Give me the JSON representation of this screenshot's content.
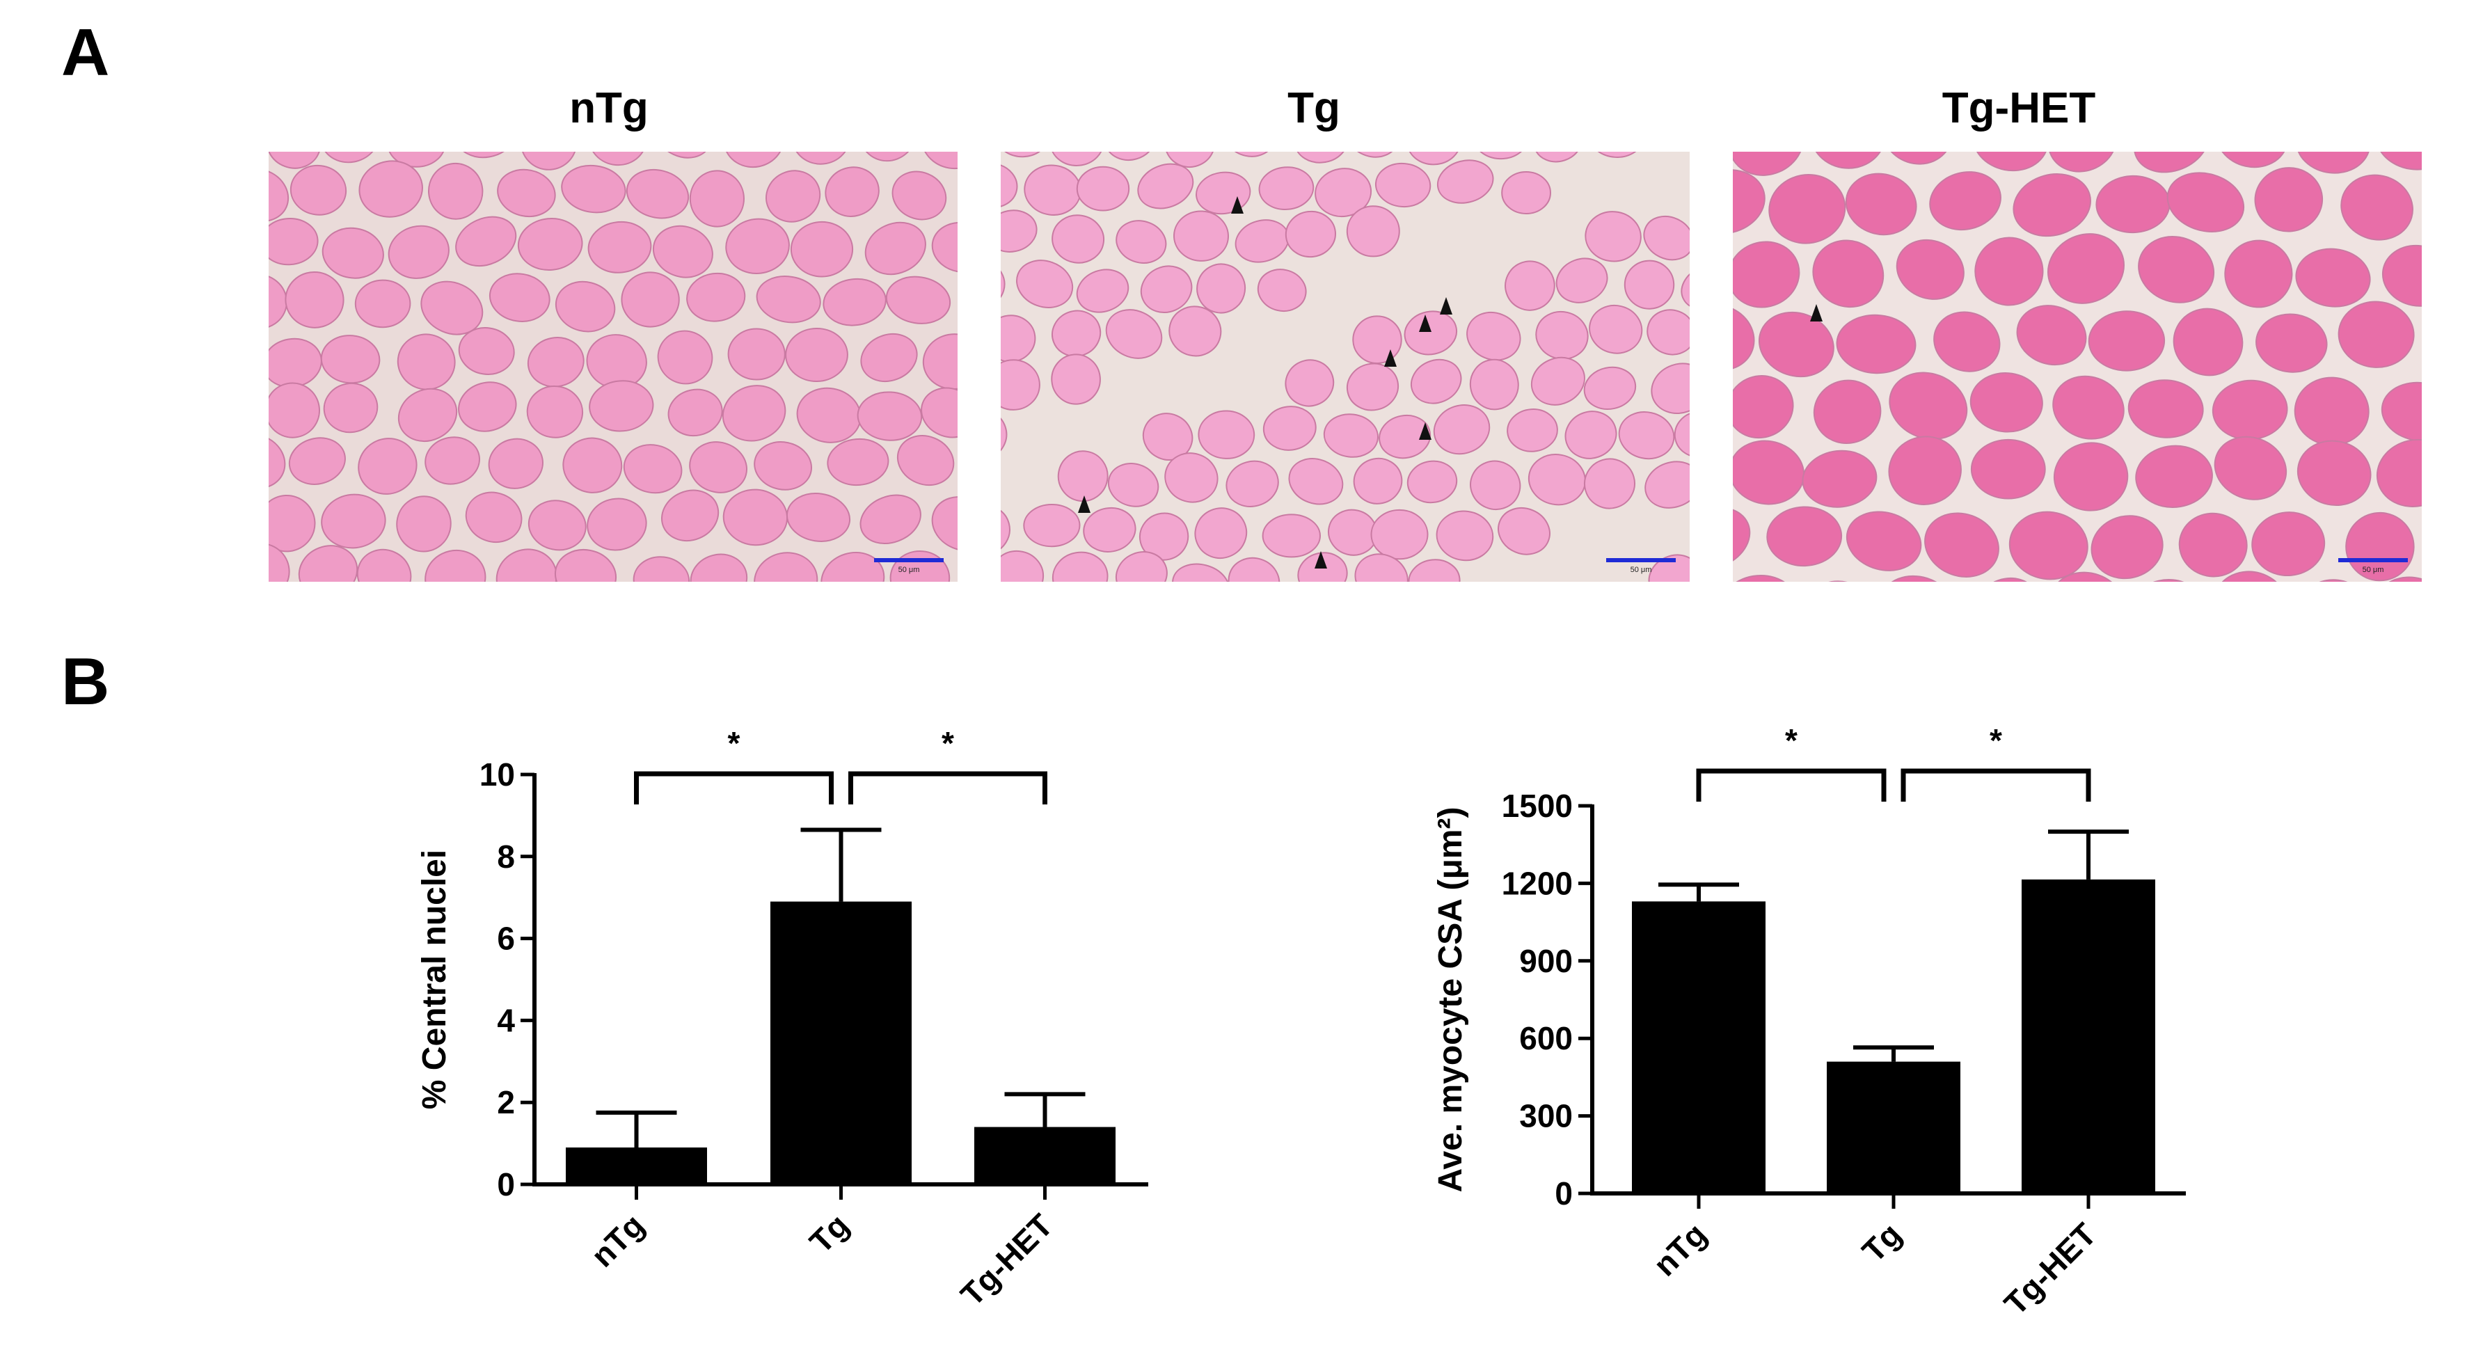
{
  "figure": {
    "panel_a_label": "A",
    "panel_b_label": "B"
  },
  "micrographs": [
    {
      "title": "nTg",
      "scale_label": "50 μm",
      "fiber_color": "#ef9cc6",
      "bg_color": "#eadbd9",
      "arrowheads": 0
    },
    {
      "title": "Tg",
      "scale_label": "50 μm",
      "fiber_color": "#f2a6cf",
      "bg_color": "#ece1dd",
      "arrowheads": 7
    },
    {
      "title": "Tg-HET",
      "scale_label": "50 μm",
      "fiber_color": "#e86ea8",
      "bg_color": "#efe3e1",
      "arrowheads": 1
    }
  ],
  "colors": {
    "bar": "#000000",
    "scale_bar": "#1f2bd6"
  },
  "chart_data": [
    {
      "type": "bar",
      "categories": [
        "nTg",
        "Tg",
        "Tg-HET"
      ],
      "values": [
        0.9,
        6.9,
        1.4
      ],
      "errors": [
        0.85,
        1.75,
        0.8
      ],
      "ylabel": "% Central nuclei",
      "ylim": [
        0,
        10
      ],
      "yticks": [
        "0",
        "2",
        "4",
        "6",
        "8",
        "10"
      ],
      "significance": [
        {
          "from": 0,
          "to": 1,
          "label": "*"
        },
        {
          "from": 1,
          "to": 2,
          "label": "*"
        }
      ]
    },
    {
      "type": "bar",
      "categories": [
        "nTg",
        "Tg",
        "Tg-HET"
      ],
      "values": [
        1130,
        510,
        1215
      ],
      "errors": [
        65,
        55,
        185
      ],
      "ylabel": "Ave. myocyte CSA (μm²)",
      "ylim": [
        0,
        1500
      ],
      "yticks": [
        "0",
        "300",
        "600",
        "900",
        "1200",
        "1500"
      ],
      "significance": [
        {
          "from": 0,
          "to": 1,
          "label": "*"
        },
        {
          "from": 1,
          "to": 2,
          "label": "*"
        }
      ]
    }
  ]
}
